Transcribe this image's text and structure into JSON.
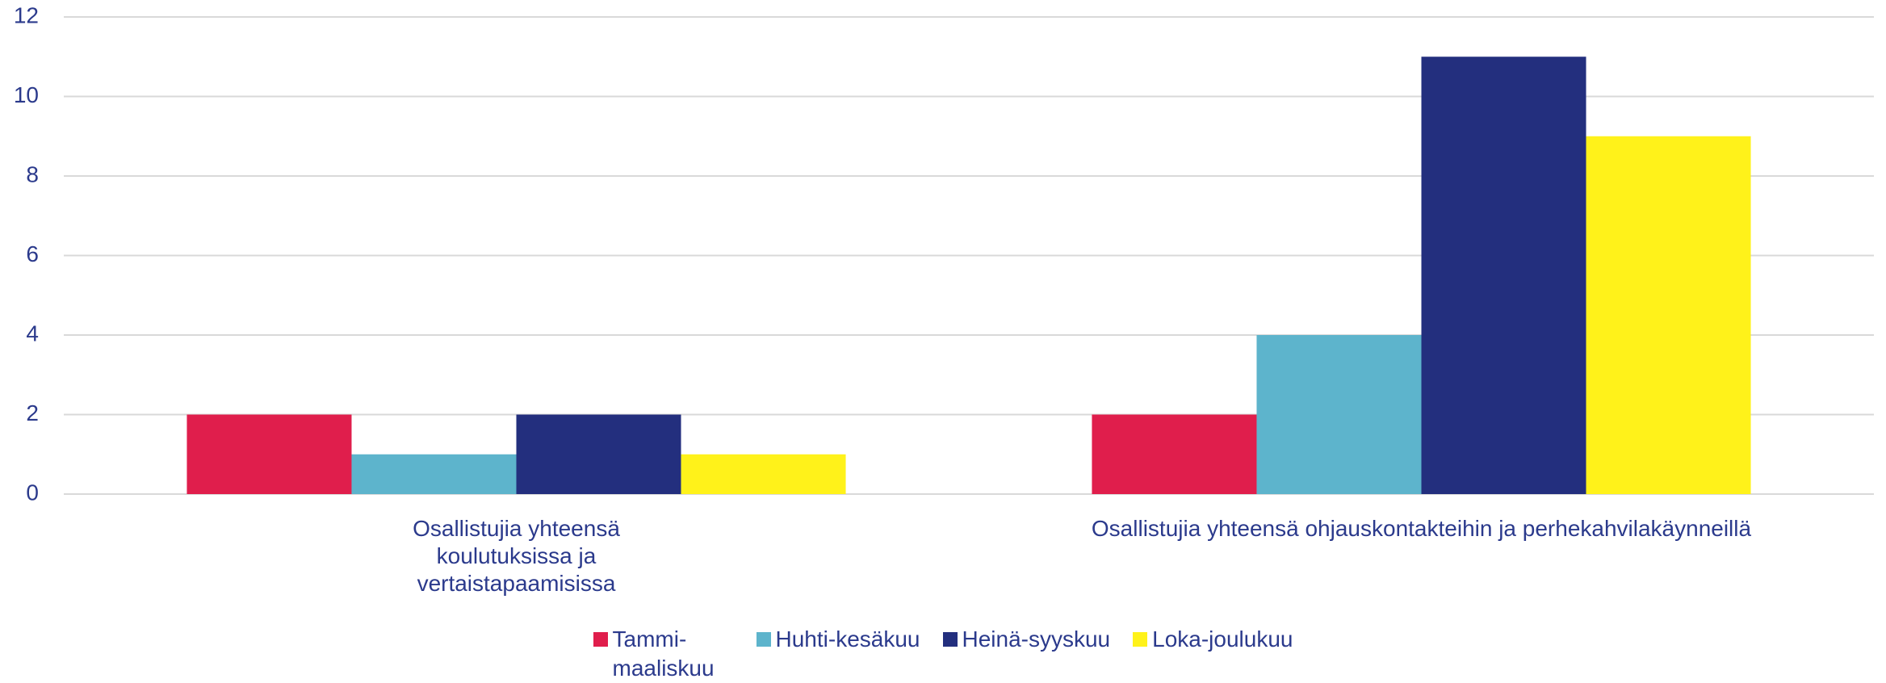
{
  "chart_data": {
    "type": "bar",
    "categories": [
      "Osallistujia yhteensä koulutuksissa ja vertaistapaamisissa",
      "Osallistujia yhteensä ohjauskontakteihin ja perhekahvilakäynneillä"
    ],
    "series": [
      {
        "name": "Tammi-maaliskuu",
        "color": "#e01e4c",
        "values": [
          2,
          2
        ]
      },
      {
        "name": "Huhti-kesäkuu",
        "color": "#5db4cc",
        "values": [
          1,
          4
        ]
      },
      {
        "name": "Heinä-syyskuu",
        "color": "#232f7e",
        "values": [
          2,
          11
        ]
      },
      {
        "name": "Loka-joulukuu",
        "color": "#fff21a",
        "values": [
          1,
          9
        ]
      }
    ],
    "ylim": [
      0,
      12
    ],
    "yticks": [
      0,
      2,
      4,
      6,
      8,
      10,
      12
    ],
    "grid": true,
    "legend": "bottom"
  }
}
